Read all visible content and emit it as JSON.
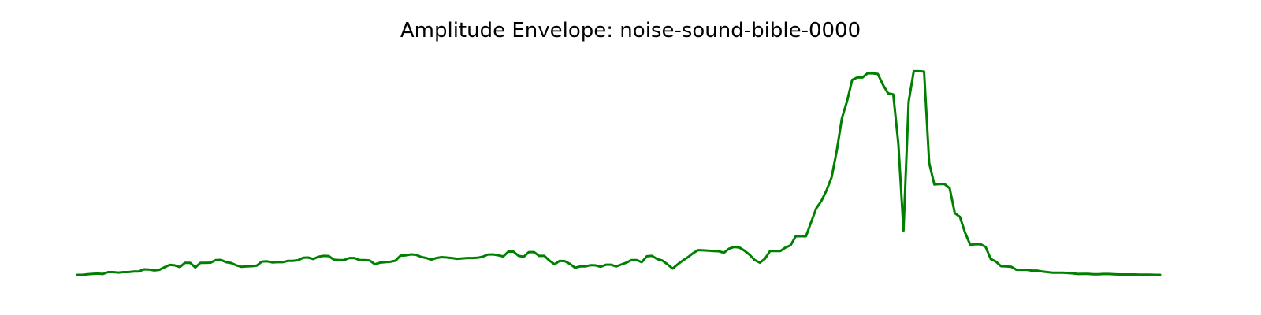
{
  "chart_data": {
    "type": "line",
    "title": "Amplitude Envelope: noise-sound-bible-0000",
    "xlabel": "",
    "ylabel": "",
    "axes": "off",
    "grid": false,
    "ylim": [
      0,
      1.0
    ],
    "series": [
      {
        "color": "#008000",
        "values": [
          0.0,
          0.0,
          0.003,
          0.005,
          0.006,
          0.004,
          0.013,
          0.013,
          0.011,
          0.013,
          0.013,
          0.016,
          0.016,
          0.026,
          0.025,
          0.021,
          0.024,
          0.036,
          0.047,
          0.045,
          0.037,
          0.057,
          0.057,
          0.035,
          0.057,
          0.057,
          0.058,
          0.07,
          0.071,
          0.06,
          0.056,
          0.045,
          0.038,
          0.04,
          0.041,
          0.044,
          0.063,
          0.064,
          0.059,
          0.06,
          0.06,
          0.066,
          0.066,
          0.069,
          0.081,
          0.082,
          0.075,
          0.086,
          0.09,
          0.089,
          0.072,
          0.07,
          0.07,
          0.08,
          0.08,
          0.07,
          0.07,
          0.068,
          0.05,
          0.058,
          0.06,
          0.062,
          0.067,
          0.091,
          0.092,
          0.097,
          0.095,
          0.085,
          0.08,
          0.072,
          0.08,
          0.084,
          0.082,
          0.08,
          0.076,
          0.078,
          0.08,
          0.08,
          0.081,
          0.086,
          0.096,
          0.097,
          0.093,
          0.087,
          0.11,
          0.11,
          0.09,
          0.086,
          0.108,
          0.108,
          0.09,
          0.09,
          0.068,
          0.05,
          0.066,
          0.065,
          0.052,
          0.034,
          0.04,
          0.04,
          0.046,
          0.045,
          0.038,
          0.048,
          0.048,
          0.04,
          0.049,
          0.058,
          0.07,
          0.07,
          0.06,
          0.088,
          0.09,
          0.075,
          0.068,
          0.05,
          0.03,
          0.05,
          0.068,
          0.084,
          0.103,
          0.117,
          0.116,
          0.115,
          0.113,
          0.112,
          0.105,
          0.124,
          0.132,
          0.13,
          0.115,
          0.095,
          0.07,
          0.058,
          0.076,
          0.113,
          0.113,
          0.113,
          0.129,
          0.14,
          0.183,
          0.183,
          0.183,
          0.25,
          0.315,
          0.35,
          0.4,
          0.462,
          0.59,
          0.743,
          0.823,
          0.924,
          0.935,
          0.935,
          0.955,
          0.955,
          0.952,
          0.9,
          0.86,
          0.855,
          0.62,
          0.21,
          0.82,
          0.965,
          0.965,
          0.963,
          0.53,
          0.428,
          0.43,
          0.43,
          0.41,
          0.292,
          0.275,
          0.2,
          0.142,
          0.145,
          0.145,
          0.132,
          0.075,
          0.063,
          0.041,
          0.04,
          0.038,
          0.024,
          0.024,
          0.024,
          0.02,
          0.02,
          0.016,
          0.013,
          0.01,
          0.01,
          0.01,
          0.009,
          0.007,
          0.004,
          0.005,
          0.005,
          0.003,
          0.003,
          0.004,
          0.004,
          0.003,
          0.002,
          0.002,
          0.002,
          0.002,
          0.001,
          0.001,
          0.001,
          0.0,
          0.0
        ]
      }
    ]
  }
}
